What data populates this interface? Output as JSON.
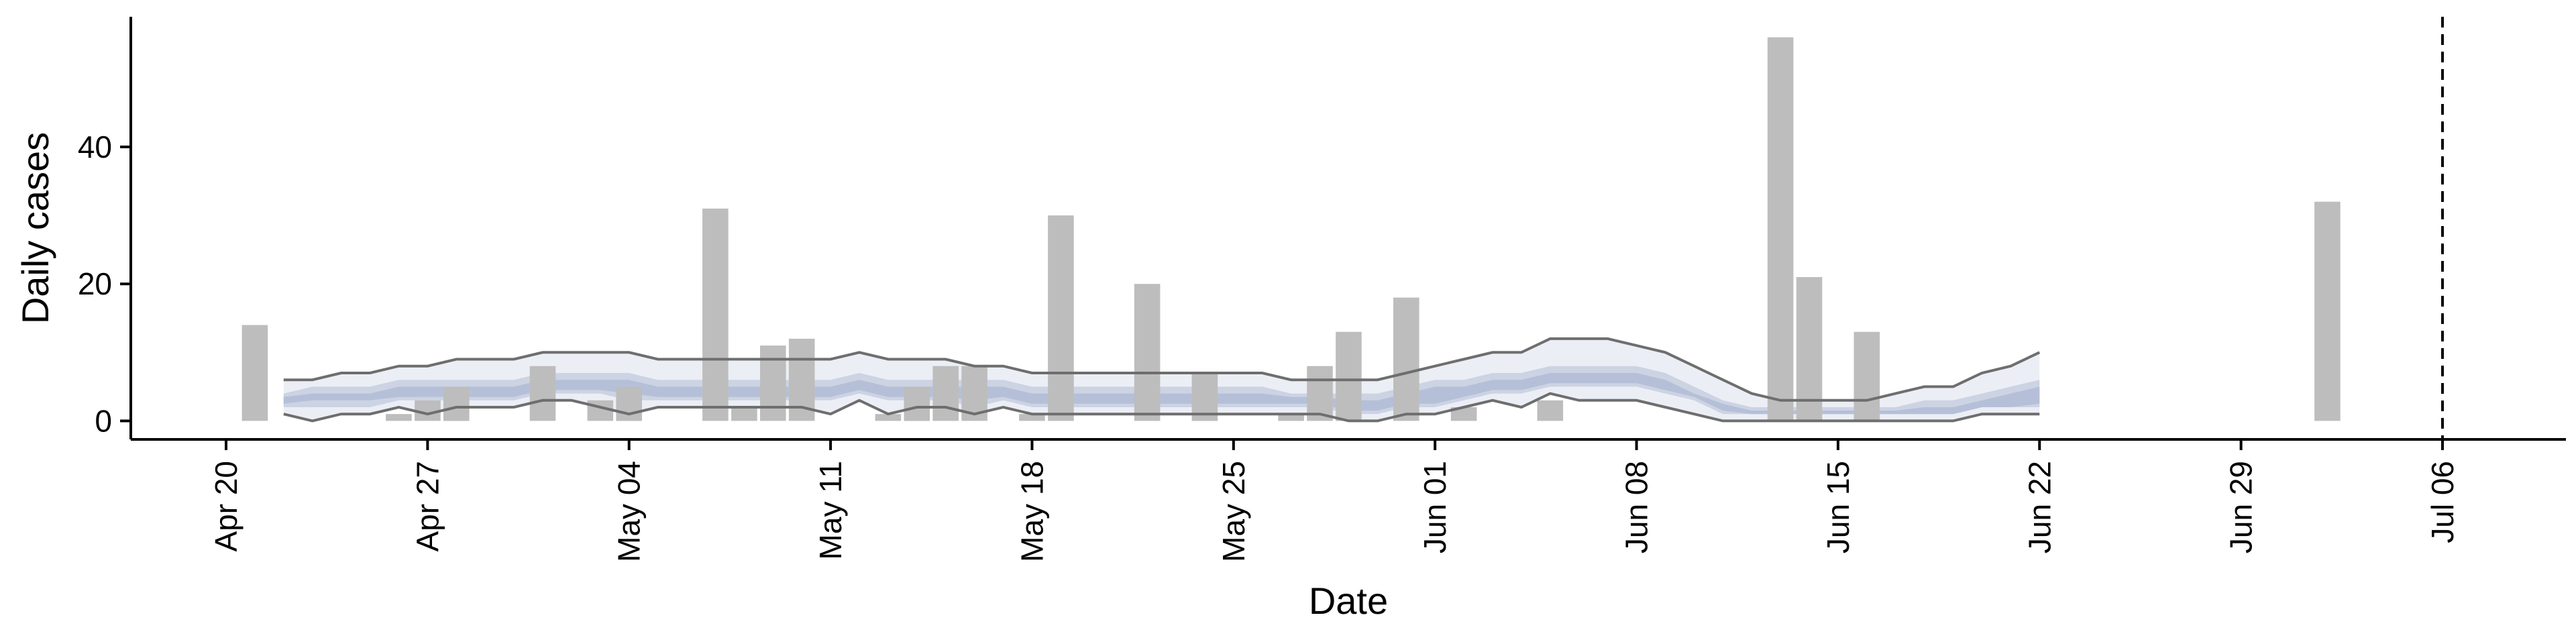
{
  "chart_data": {
    "type": "bar",
    "xlabel": "Date",
    "ylabel": "Daily cases",
    "ylim": [
      -2.7,
      59
    ],
    "xlim": [
      "2020-04-20",
      "2020-07-06"
    ],
    "y_ticks": [
      0,
      20,
      40
    ],
    "x_ticks": [
      {
        "date": "2020-04-20",
        "label": "Apr 20"
      },
      {
        "date": "2020-04-27",
        "label": "Apr 27"
      },
      {
        "date": "2020-05-04",
        "label": "May 04"
      },
      {
        "date": "2020-05-11",
        "label": "May 11"
      },
      {
        "date": "2020-05-18",
        "label": "May 18"
      },
      {
        "date": "2020-05-25",
        "label": "May 25"
      },
      {
        "date": "2020-06-01",
        "label": "Jun 01"
      },
      {
        "date": "2020-06-08",
        "label": "Jun 08"
      },
      {
        "date": "2020-06-15",
        "label": "Jun 15"
      },
      {
        "date": "2020-06-22",
        "label": "Jun 22"
      },
      {
        "date": "2020-06-29",
        "label": "Jun 29"
      },
      {
        "date": "2020-07-06",
        "label": "Jul 06"
      }
    ],
    "vline": "2020-07-06",
    "colors": {
      "bars": "#bdbdbd",
      "band_outer": "#eceef5",
      "band_mid": "#ccd3e3",
      "band_inner": "#b5c0d8",
      "bound_lines": "#6e6e6e",
      "axes": "#000000"
    },
    "bars": [
      {
        "date": "2020-04-21",
        "value": 14
      },
      {
        "date": "2020-04-26",
        "value": 1
      },
      {
        "date": "2020-04-27",
        "value": 3
      },
      {
        "date": "2020-04-28",
        "value": 5
      },
      {
        "date": "2020-05-01",
        "value": 8
      },
      {
        "date": "2020-05-03",
        "value": 3
      },
      {
        "date": "2020-05-04",
        "value": 5
      },
      {
        "date": "2020-05-07",
        "value": 31
      },
      {
        "date": "2020-05-08",
        "value": 2
      },
      {
        "date": "2020-05-09",
        "value": 11
      },
      {
        "date": "2020-05-10",
        "value": 12
      },
      {
        "date": "2020-05-13",
        "value": 1
      },
      {
        "date": "2020-05-14",
        "value": 5
      },
      {
        "date": "2020-05-15",
        "value": 8
      },
      {
        "date": "2020-05-16",
        "value": 8
      },
      {
        "date": "2020-05-18",
        "value": 1
      },
      {
        "date": "2020-05-19",
        "value": 30
      },
      {
        "date": "2020-05-22",
        "value": 20
      },
      {
        "date": "2020-05-24",
        "value": 7
      },
      {
        "date": "2020-05-27",
        "value": 1
      },
      {
        "date": "2020-05-28",
        "value": 8
      },
      {
        "date": "2020-05-29",
        "value": 13
      },
      {
        "date": "2020-05-31",
        "value": 18
      },
      {
        "date": "2020-06-02",
        "value": 2
      },
      {
        "date": "2020-06-05",
        "value": 3
      },
      {
        "date": "2020-06-13",
        "value": 56
      },
      {
        "date": "2020-06-14",
        "value": 21
      },
      {
        "date": "2020-06-16",
        "value": 13
      },
      {
        "date": "2020-07-02",
        "value": 32
      }
    ],
    "nowcast_dates": [
      "2020-04-22",
      "2020-04-23",
      "2020-04-24",
      "2020-04-25",
      "2020-04-26",
      "2020-04-27",
      "2020-04-28",
      "2020-04-29",
      "2020-04-30",
      "2020-05-01",
      "2020-05-02",
      "2020-05-03",
      "2020-05-04",
      "2020-05-05",
      "2020-05-06",
      "2020-05-07",
      "2020-05-08",
      "2020-05-09",
      "2020-05-10",
      "2020-05-11",
      "2020-05-12",
      "2020-05-13",
      "2020-05-14",
      "2020-05-15",
      "2020-05-16",
      "2020-05-17",
      "2020-05-18",
      "2020-05-19",
      "2020-05-20",
      "2020-05-21",
      "2020-05-22",
      "2020-05-23",
      "2020-05-24",
      "2020-05-25",
      "2020-05-26",
      "2020-05-27",
      "2020-05-28",
      "2020-05-29",
      "2020-05-30",
      "2020-05-31",
      "2020-06-01",
      "2020-06-02",
      "2020-06-03",
      "2020-06-04",
      "2020-06-05",
      "2020-06-06",
      "2020-06-07",
      "2020-06-08",
      "2020-06-09",
      "2020-06-10",
      "2020-06-11",
      "2020-06-12",
      "2020-06-13",
      "2020-06-14",
      "2020-06-15",
      "2020-06-16",
      "2020-06-17",
      "2020-06-18",
      "2020-06-19",
      "2020-06-20",
      "2020-06-21",
      "2020-06-22"
    ],
    "band_outer_upper": [
      6,
      6,
      7,
      7,
      8,
      8,
      9,
      9,
      9,
      10,
      10,
      10,
      10,
      9,
      9,
      9,
      9,
      9,
      9,
      9,
      10,
      9,
      9,
      9,
      8,
      8,
      7,
      7,
      7,
      7,
      7,
      7,
      7,
      7,
      7,
      6,
      6,
      6,
      6,
      7,
      8,
      9,
      10,
      10,
      12,
      12,
      12,
      11,
      10,
      8,
      6,
      4,
      3,
      3,
      3,
      3,
      4,
      5,
      5,
      7,
      8,
      10
    ],
    "band_outer_lower": [
      1,
      0,
      1,
      1,
      2,
      1,
      2,
      2,
      2,
      3,
      3,
      2,
      1,
      2,
      2,
      2,
      2,
      2,
      2,
      1,
      3,
      1,
      2,
      2,
      1,
      2,
      1,
      1,
      1,
      1,
      1,
      1,
      1,
      1,
      1,
      1,
      1,
      0,
      0,
      1,
      1,
      2,
      3,
      2,
      4,
      3,
      3,
      3,
      2,
      1,
      0,
      0,
      0,
      0,
      0,
      0,
      0,
      0,
      0,
      1,
      1,
      1
    ],
    "band_mid_upper": [
      4,
      5,
      5,
      5,
      6,
      6,
      6,
      6,
      6,
      7,
      7,
      7,
      7,
      6,
      6,
      6,
      6,
      6,
      6,
      6,
      7,
      6,
      6,
      6,
      6,
      6,
      5,
      5,
      5,
      5,
      5,
      5,
      5,
      5,
      5,
      4,
      4,
      4,
      4,
      5,
      6,
      6,
      7,
      7,
      8,
      8,
      8,
      8,
      7,
      5,
      3,
      2,
      2,
      2,
      2,
      2,
      2,
      3,
      3,
      4,
      5,
      6
    ],
    "band_mid_lower": [
      2,
      2,
      2,
      2,
      3,
      3,
      3,
      3,
      3,
      4,
      4,
      4,
      3,
      3,
      3,
      3,
      3,
      3,
      3,
      3,
      4,
      3,
      3,
      3,
      2,
      3,
      2,
      2,
      2,
      2,
      2,
      2,
      2,
      2,
      2,
      2,
      2,
      1,
      1,
      2,
      2,
      3,
      4,
      4,
      5,
      5,
      5,
      5,
      4,
      3,
      1,
      1,
      1,
      1,
      1,
      1,
      1,
      1,
      1,
      2,
      2,
      2
    ],
    "band_inner_upper": [
      3.5,
      4,
      4,
      4,
      5,
      5,
      5,
      5,
      5,
      6,
      6,
      6,
      6,
      5,
      5,
      5,
      5,
      5,
      5,
      5,
      6,
      5,
      5,
      5,
      5,
      5,
      4,
      4,
      4,
      4,
      4,
      4,
      4,
      4,
      4,
      3.5,
      3.5,
      3,
      3,
      4,
      5,
      5,
      6,
      6,
      7,
      7,
      7,
      7,
      6,
      4,
      2.5,
      1.5,
      1.5,
      1.5,
      1.5,
      1.5,
      1.5,
      2,
      2,
      3,
      4,
      5
    ],
    "band_inner_lower": [
      2.5,
      3,
      3,
      3,
      3.5,
      3.5,
      3.5,
      3.5,
      3.5,
      4.5,
      4.5,
      4.5,
      4,
      3.5,
      3.5,
      3.5,
      3.5,
      3.5,
      3.5,
      3.5,
      4.5,
      3.5,
      3.5,
      3.5,
      3,
      3.5,
      2.5,
      2.5,
      2.5,
      2.5,
      2.5,
      2.5,
      2.5,
      2.5,
      2.5,
      2.5,
      2.5,
      1.5,
      1.5,
      2.5,
      2.5,
      3.5,
      4.5,
      4.5,
      5.5,
      5.5,
      5.5,
      5.5,
      4.5,
      3.5,
      1.5,
      1,
      1,
      1,
      1,
      1,
      1,
      1,
      1,
      2,
      2,
      2.5
    ]
  }
}
